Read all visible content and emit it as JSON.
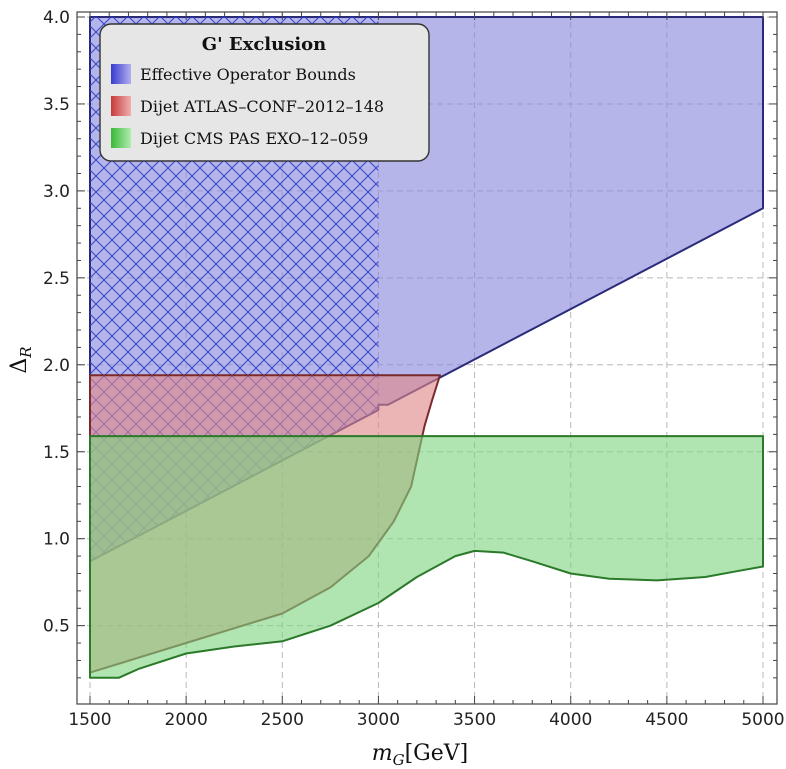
{
  "chart_data": {
    "type": "area",
    "title": "",
    "xlabel": "m_G[GeV]",
    "xlabel_main": "m",
    "xlabel_sub": "G",
    "xlabel_unit": "[GeV]",
    "ylabel": "Δ_R",
    "ylabel_main": "Δ",
    "ylabel_sub": "R",
    "xlim": [
      1500,
      5000
    ],
    "ylim": [
      0.13,
      4.0
    ],
    "xticks": [
      "1500",
      "2000",
      "2500",
      "3000",
      "3500",
      "4000",
      "4500",
      "5000"
    ],
    "yticks": [
      "0.5",
      "1.0",
      "1.5",
      "2.0",
      "2.5",
      "3.0",
      "3.5",
      "4.0"
    ],
    "grid": true,
    "legend": {
      "title": "G' Exclusion",
      "placement": "top-left",
      "entries": [
        "Effective Operator Bounds",
        "Dijet ATLAS–CONF–2012–148",
        "Dijet CMS PAS EXO–12–059"
      ]
    },
    "series": [
      {
        "name": "Effective Operator Bounds",
        "color": "#8888dd",
        "edge_color": "#2a2a7a",
        "polygon": [
          [
            1500,
            0.87
          ],
          [
            3000,
            1.74
          ],
          [
            3000,
            1.77
          ],
          [
            3050,
            1.77
          ],
          [
            5000,
            2.9
          ],
          [
            5000,
            4.0
          ],
          [
            1500,
            4.0
          ]
        ]
      },
      {
        "name": "Effective Operator Bounds (hatched)",
        "color": "#3344cc",
        "hatched": true,
        "polygon": [
          [
            1500,
            0.87
          ],
          [
            3000,
            1.74
          ],
          [
            3000,
            4.0
          ],
          [
            1500,
            4.0
          ]
        ]
      },
      {
        "name": "Dijet ATLAS–CONF–2012–148",
        "color": "#e08888",
        "edge_color": "#7a2a2a",
        "polygon": [
          [
            1500,
            0.23
          ],
          [
            2000,
            0.4
          ],
          [
            2500,
            0.57
          ],
          [
            2750,
            0.72
          ],
          [
            2950,
            0.9
          ],
          [
            3080,
            1.1
          ],
          [
            3170,
            1.3
          ],
          [
            3210,
            1.5
          ],
          [
            3240,
            1.65
          ],
          [
            3280,
            1.8
          ],
          [
            3320,
            1.94
          ],
          [
            1500,
            1.94
          ]
        ]
      },
      {
        "name": "Dijet CMS PAS EXO–12–059",
        "color": "#7fd47f",
        "edge_color": "#2a7a2a",
        "polygon": [
          [
            1500,
            0.2
          ],
          [
            1650,
            0.2
          ],
          [
            1750,
            0.25
          ],
          [
            2000,
            0.34
          ],
          [
            2250,
            0.38
          ],
          [
            2500,
            0.41
          ],
          [
            2750,
            0.5
          ],
          [
            3000,
            0.63
          ],
          [
            3200,
            0.78
          ],
          [
            3400,
            0.9
          ],
          [
            3500,
            0.93
          ],
          [
            3650,
            0.92
          ],
          [
            3800,
            0.87
          ],
          [
            4000,
            0.8
          ],
          [
            4200,
            0.77
          ],
          [
            4450,
            0.76
          ],
          [
            4700,
            0.78
          ],
          [
            4850,
            0.81
          ],
          [
            5000,
            0.84
          ],
          [
            5000,
            1.59
          ],
          [
            1500,
            1.59
          ]
        ]
      }
    ]
  }
}
